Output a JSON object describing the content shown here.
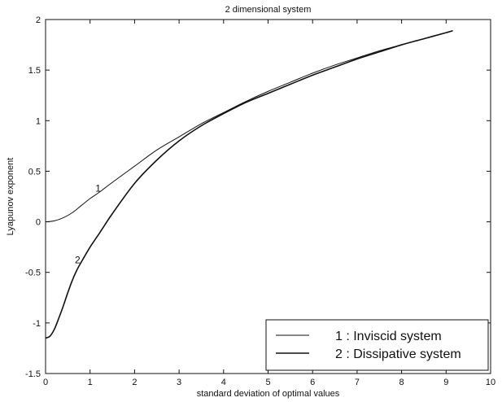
{
  "chart_data": {
    "type": "line",
    "title": "2 dimensional system",
    "xlabel": "standard deviation of optimal values",
    "ylabel": "Lyapunov exponent",
    "xlim": [
      0,
      10
    ],
    "ylim": [
      -1.5,
      2
    ],
    "x_ticks": [
      0,
      1,
      2,
      3,
      4,
      5,
      6,
      7,
      8,
      9,
      10
    ],
    "y_ticks": [
      -1.5,
      -1,
      -0.5,
      0,
      0.5,
      1,
      1.5,
      2
    ],
    "x_tick_labels": [
      "0",
      "1",
      "2",
      "3",
      "4",
      "5",
      "6",
      "7",
      "8",
      "9",
      "10"
    ],
    "y_tick_labels": [
      "-1.5",
      "-1",
      "-0.5",
      "0",
      "0.5",
      "1",
      "1.5",
      "2"
    ],
    "grid": false,
    "legend_position": "bottom-right",
    "line_color": "#111111",
    "series": [
      {
        "name": "1 : Inviscid system",
        "curve_label": "1",
        "x": [
          0,
          0.2,
          0.4,
          0.6,
          0.8,
          1.0,
          1.2,
          1.5,
          2.0,
          2.5,
          3.0,
          3.5,
          4.0,
          4.5,
          5.0,
          5.5,
          6.0,
          6.5,
          7.0,
          7.5,
          8.0,
          8.5,
          9.0,
          9.15
        ],
        "y": [
          0.0,
          0.01,
          0.04,
          0.09,
          0.16,
          0.23,
          0.29,
          0.39,
          0.55,
          0.71,
          0.84,
          0.97,
          1.08,
          1.19,
          1.29,
          1.38,
          1.47,
          1.55,
          1.62,
          1.69,
          1.75,
          1.81,
          1.87,
          1.89
        ]
      },
      {
        "name": "2 : Dissipative system",
        "curve_label": "2",
        "x": [
          0,
          0.1,
          0.2,
          0.3,
          0.4,
          0.5,
          0.6,
          0.7,
          0.8,
          1.0,
          1.2,
          1.5,
          2.0,
          2.5,
          3.0,
          3.5,
          4.0,
          4.5,
          5.0,
          5.5,
          6.0,
          6.5,
          7.0,
          7.5,
          8.0,
          8.5,
          9.0,
          9.15
        ],
        "y": [
          -1.15,
          -1.13,
          -1.06,
          -0.95,
          -0.83,
          -0.7,
          -0.58,
          -0.48,
          -0.4,
          -0.25,
          -0.12,
          0.08,
          0.38,
          0.61,
          0.8,
          0.95,
          1.07,
          1.18,
          1.27,
          1.36,
          1.45,
          1.53,
          1.61,
          1.68,
          1.75,
          1.81,
          1.87,
          1.89
        ]
      }
    ],
    "legend_entries": [
      "1 : Inviscid system",
      "2 : Dissipative system"
    ]
  }
}
